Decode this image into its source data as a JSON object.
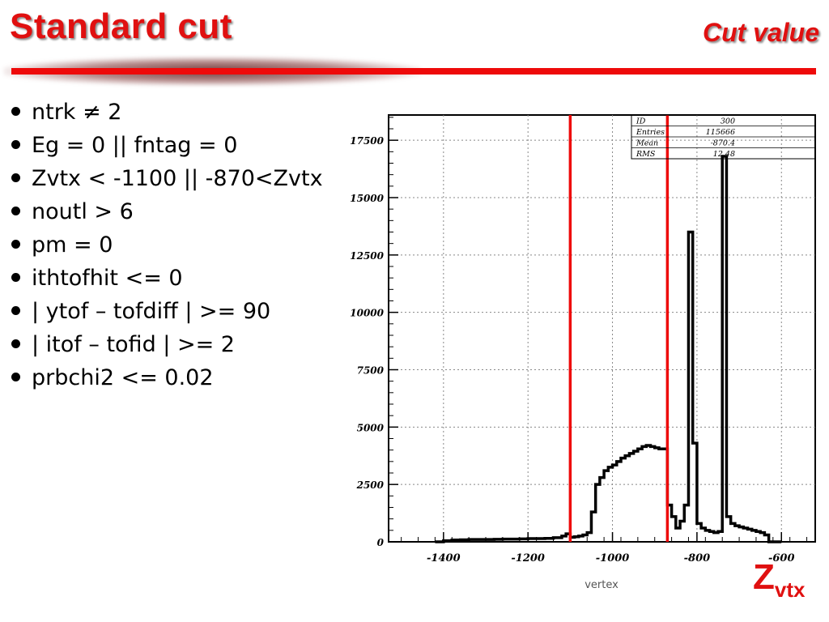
{
  "slide": {
    "title": "Standard cut",
    "subtitle": "Cut value",
    "colors": {
      "accent": "#e01010",
      "line": "#ee0a0a"
    },
    "bullets": [
      "ntrk ≠ 2",
      "Eg = 0 || fntag = 0",
      "Zvtx < -1100 || -870<Zvtx",
      "noutl > 6",
      "pm = 0",
      "ithtofhit <= 0",
      "| ytof – tofdiff | >= 90",
      "| itof – tofid | >= 2",
      "prbchi2 <= 0.02"
    ],
    "zvtx_main": "Z",
    "zvtx_sub": "vtx"
  },
  "chart_data": {
    "type": "histogram-step",
    "xlabel": "vertex",
    "xlim": [
      -1530,
      -520
    ],
    "ylim": [
      0,
      18600
    ],
    "xticks": [
      -1400,
      -1200,
      -1000,
      -800,
      -600
    ],
    "yticks": [
      0,
      2500,
      5000,
      7500,
      10000,
      12500,
      15000,
      17500
    ],
    "grid": true,
    "stats": [
      {
        "label": "ID",
        "value": "300"
      },
      {
        "label": "Entries",
        "value": "115666"
      },
      {
        "label": "Mean",
        "value": "-870.4"
      },
      {
        "label": "RMS",
        "value": "12.48"
      }
    ],
    "cut_lines": [
      -1100,
      -870
    ],
    "bin_edges": [
      -1420,
      -1400,
      -1380,
      -1360,
      -1340,
      -1320,
      -1300,
      -1280,
      -1260,
      -1240,
      -1220,
      -1200,
      -1180,
      -1160,
      -1140,
      -1120,
      -1110,
      -1100,
      -1090,
      -1080,
      -1070,
      -1060,
      -1050,
      -1040,
      -1030,
      -1020,
      -1010,
      -1000,
      -990,
      -980,
      -970,
      -960,
      -950,
      -940,
      -930,
      -920,
      -910,
      -900,
      -890,
      -880,
      -870,
      -860,
      -850,
      -840,
      -830,
      -820,
      -810,
      -800,
      -790,
      -780,
      -770,
      -760,
      -750,
      -740,
      -730,
      -720,
      -710,
      -700,
      -690,
      -680,
      -670,
      -660,
      -650,
      -640,
      -630,
      -620,
      -610,
      -600
    ],
    "counts": [
      0,
      50,
      80,
      90,
      100,
      100,
      100,
      110,
      120,
      120,
      130,
      140,
      140,
      150,
      180,
      250,
      350,
      200,
      220,
      250,
      300,
      400,
      1300,
      2500,
      2800,
      3100,
      3250,
      3350,
      3500,
      3650,
      3750,
      3850,
      3950,
      4050,
      4150,
      4200,
      4150,
      4100,
      4050,
      4050,
      1600,
      1100,
      600,
      900,
      1600,
      13500,
      4300,
      800,
      600,
      500,
      450,
      400,
      450,
      16800,
      1100,
      800,
      700,
      650,
      600,
      550,
      500,
      450,
      400,
      300,
      0,
      0,
      0
    ]
  }
}
